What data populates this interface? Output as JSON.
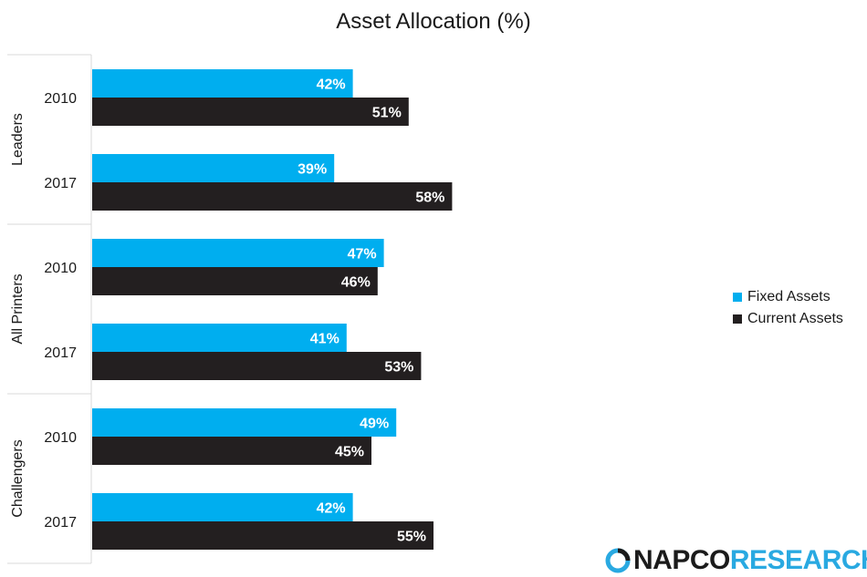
{
  "chart_data": {
    "type": "bar",
    "orientation": "horizontal",
    "title": "Asset Allocation (%)",
    "groups": [
      {
        "name": "Leaders",
        "rows": [
          {
            "label": "2010",
            "values": [
              42,
              51
            ]
          },
          {
            "label": "2017",
            "values": [
              39,
              58
            ]
          }
        ]
      },
      {
        "name": "All Printers",
        "rows": [
          {
            "label": "2010",
            "values": [
              47,
              46
            ]
          },
          {
            "label": "2017",
            "values": [
              41,
              53
            ]
          }
        ]
      },
      {
        "name": "Challengers",
        "rows": [
          {
            "label": "2010",
            "values": [
              49,
              45
            ]
          },
          {
            "label": "2017",
            "values": [
              42,
              55
            ]
          }
        ]
      }
    ],
    "series": [
      {
        "name": "Fixed Assets",
        "color": "#00aeef",
        "values": [
          42,
          39,
          47,
          41,
          49,
          42
        ]
      },
      {
        "name": "Current Assets",
        "color": "#231f20",
        "values": [
          51,
          58,
          46,
          53,
          45,
          55
        ]
      }
    ],
    "value_suffix": "%",
    "xlim": [
      0,
      100
    ],
    "grid": false,
    "legend": "right"
  },
  "logo": {
    "brand": "NAPCO",
    "suffix": "RESEARCH",
    "icon": "napco-ring-icon"
  }
}
